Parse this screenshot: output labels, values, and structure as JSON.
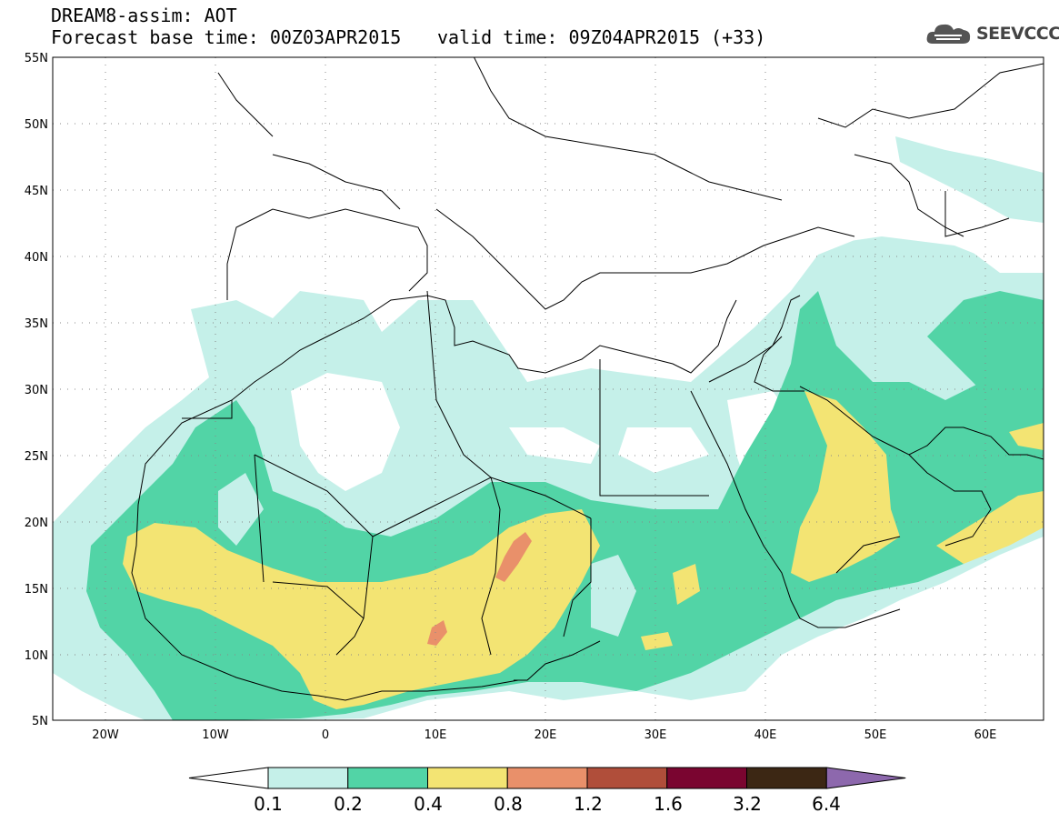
{
  "title": {
    "line1": "DREAM8-assim: AOT",
    "line2_base": "Forecast base time: 00Z03APR2015",
    "line2_valid": "valid time: 09Z04APR2015 (+33)"
  },
  "logo": {
    "text": "SEEVCCC",
    "icon": "cloud-logo-icon"
  },
  "map": {
    "lon_range": [
      -25,
      65
    ],
    "lat_range": [
      5,
      55
    ],
    "lat_ticks": [
      "55N",
      "50N",
      "45N",
      "40N",
      "35N",
      "30N",
      "25N",
      "20N",
      "15N",
      "10N",
      "5N"
    ],
    "lon_ticks": [
      "20W",
      "10W",
      "0",
      "10E",
      "20E",
      "30E",
      "40E",
      "50E",
      "60E"
    ],
    "grid": "dotted"
  },
  "colorbar": {
    "labels": [
      "0.1",
      "0.2",
      "0.4",
      "0.8",
      "1.2",
      "1.6",
      "3.2",
      "6.4"
    ],
    "colors": [
      "#ffffff",
      "#c5f0e9",
      "#52d4a6",
      "#f3e473",
      "#e9906a",
      "#b04e3a",
      "#7a0530",
      "#3c2714",
      "#8d68ad"
    ]
  }
}
